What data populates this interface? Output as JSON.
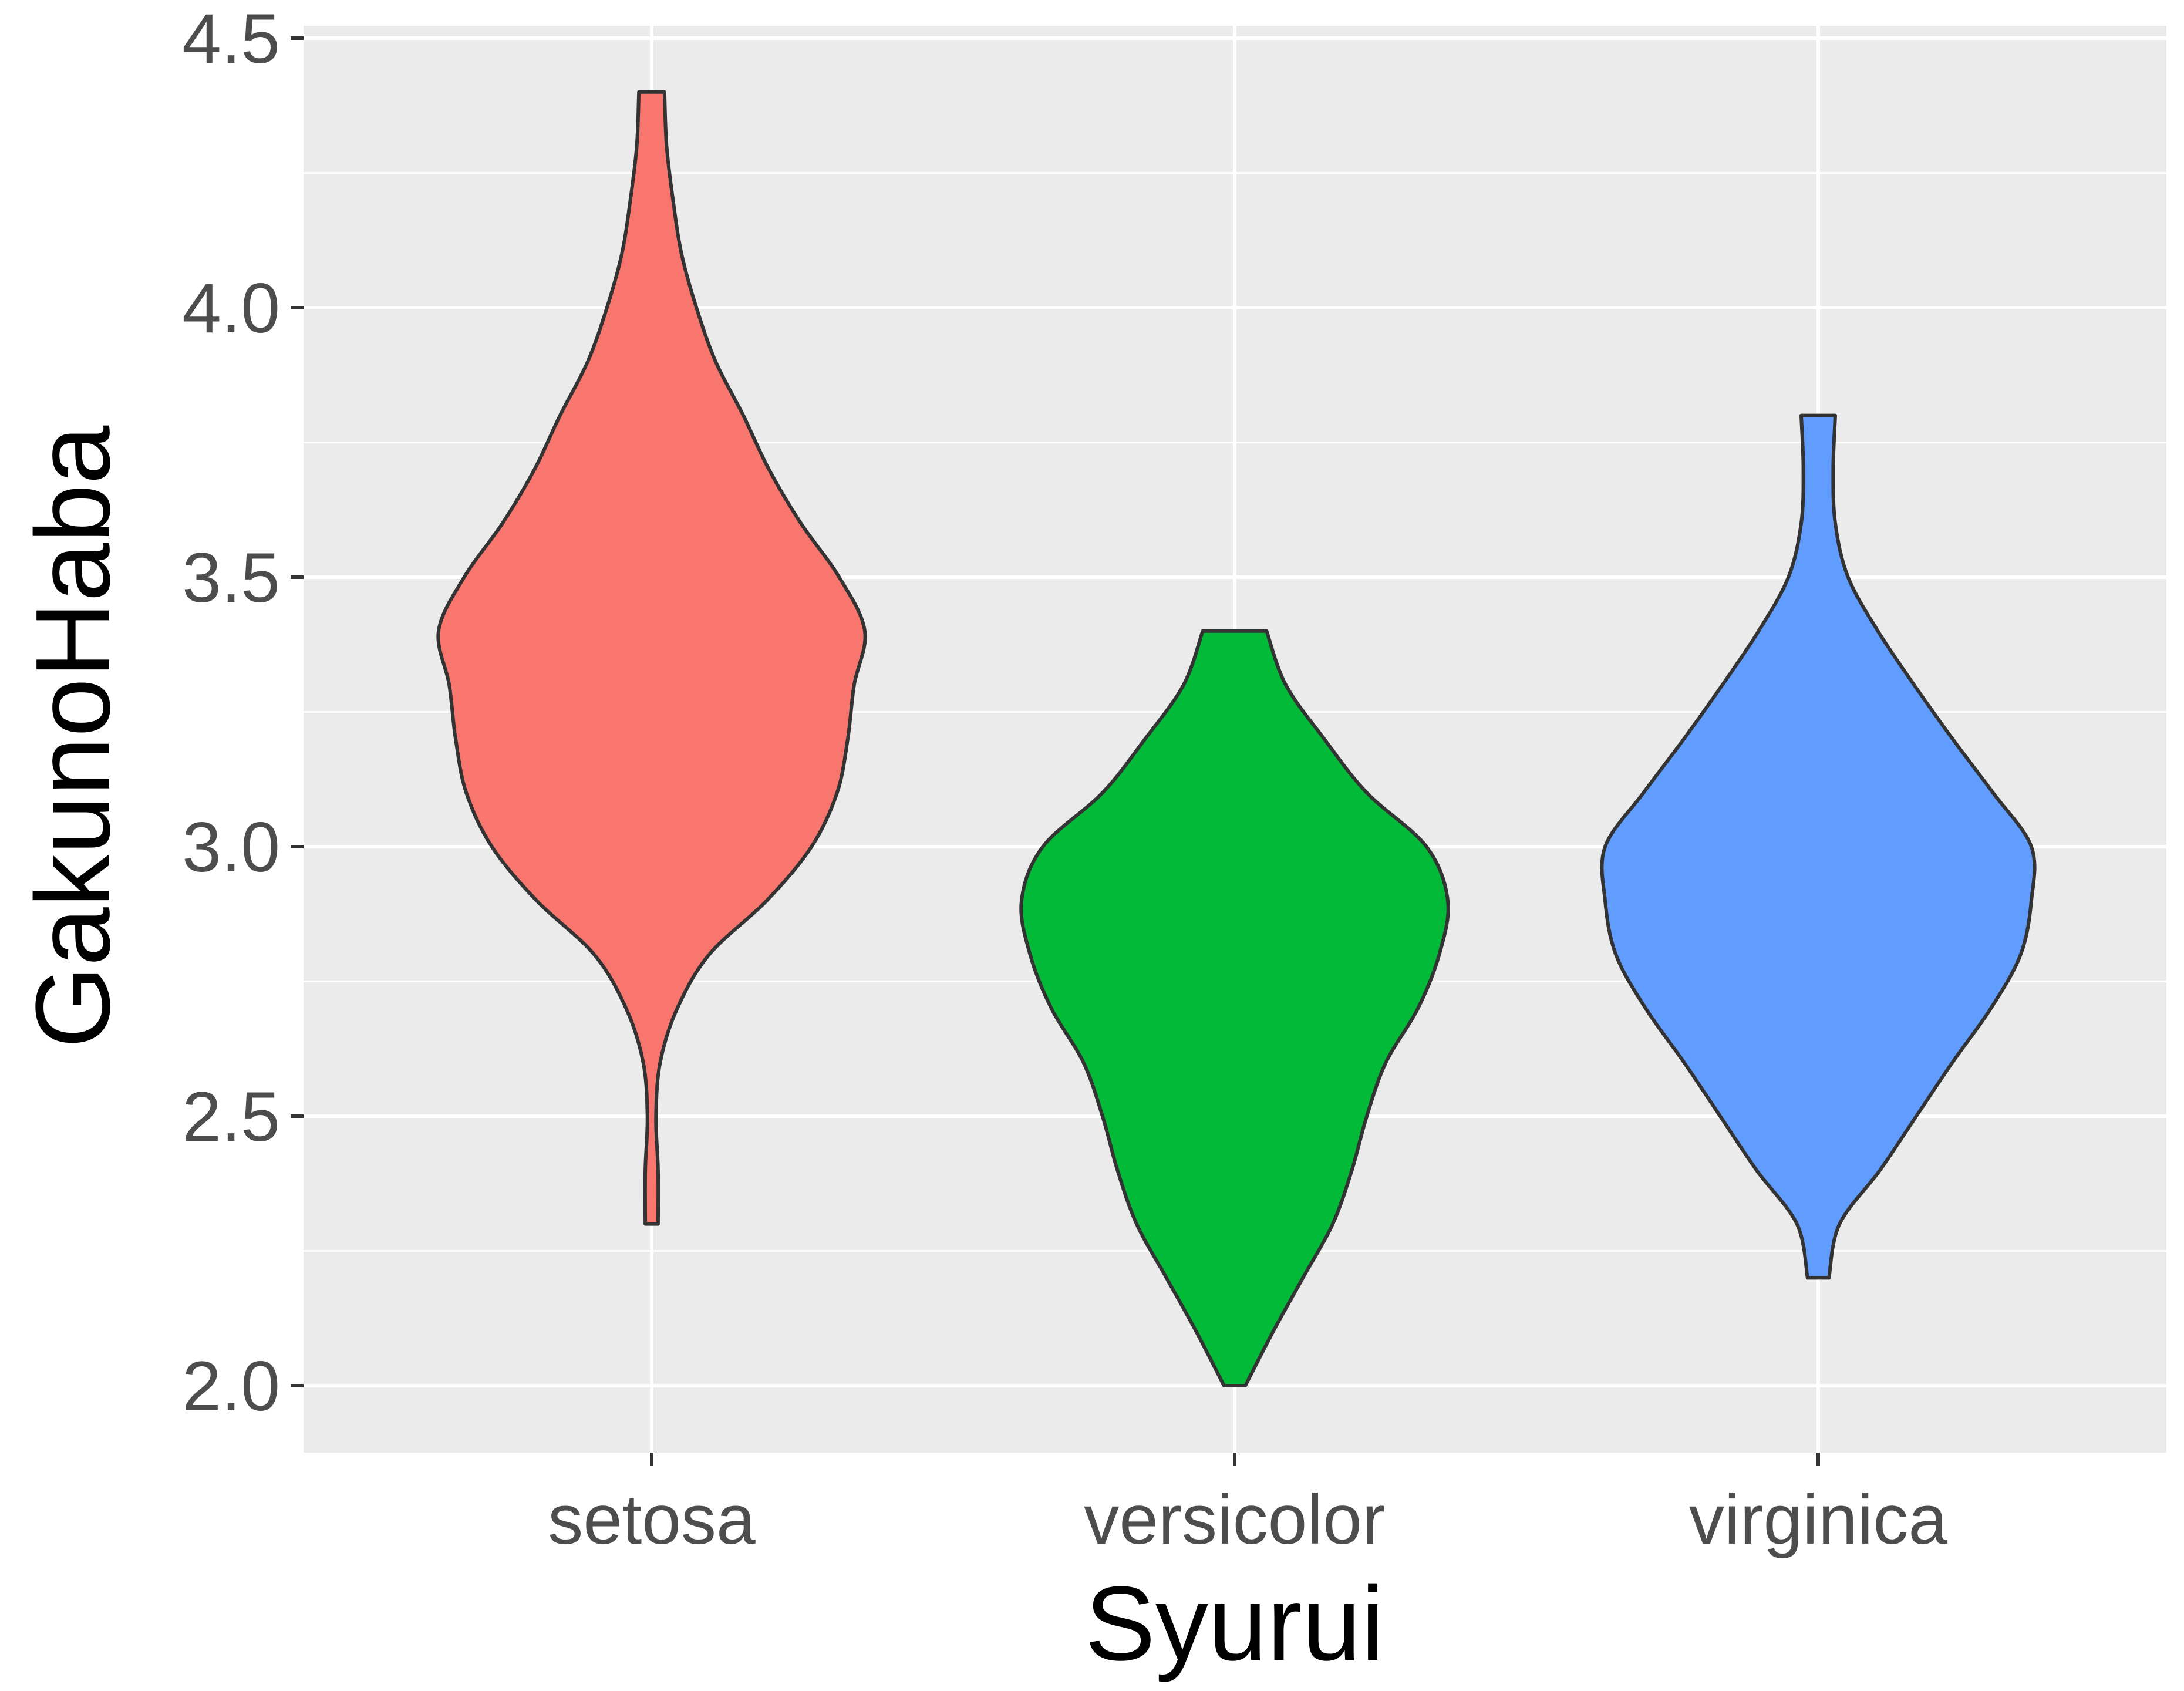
{
  "chart_data": {
    "type": "violin",
    "xlabel": "Syurui",
    "ylabel": "GakunoHaba",
    "ylim": [
      1.88,
      4.55
    ],
    "yticks": [
      "2.0",
      "2.5",
      "3.0",
      "3.5",
      "4.0",
      "4.5"
    ],
    "ytick_values": [
      2.0,
      2.5,
      3.0,
      3.5,
      4.0,
      4.5
    ],
    "grid": true,
    "legend": "none",
    "categories": [
      "setosa",
      "versicolor",
      "virginica"
    ],
    "series": [
      {
        "category": "setosa",
        "color": "#F8766D",
        "min": 2.3,
        "max": 4.4,
        "profile": [
          [
            2.3,
            0.03
          ],
          [
            2.4,
            0.03
          ],
          [
            2.5,
            0.02
          ],
          [
            2.6,
            0.04
          ],
          [
            2.7,
            0.12
          ],
          [
            2.8,
            0.27
          ],
          [
            2.9,
            0.54
          ],
          [
            3.0,
            0.75
          ],
          [
            3.1,
            0.87
          ],
          [
            3.2,
            0.92
          ],
          [
            3.3,
            0.95
          ],
          [
            3.4,
            1.0
          ],
          [
            3.5,
            0.88
          ],
          [
            3.6,
            0.7
          ],
          [
            3.7,
            0.55
          ],
          [
            3.8,
            0.43
          ],
          [
            3.9,
            0.3
          ],
          [
            4.0,
            0.21
          ],
          [
            4.1,
            0.14
          ],
          [
            4.2,
            0.1
          ],
          [
            4.3,
            0.07
          ],
          [
            4.4,
            0.06
          ]
        ]
      },
      {
        "category": "versicolor",
        "color": "#00BA38",
        "min": 2.0,
        "max": 3.4,
        "profile": [
          [
            2.0,
            0.05
          ],
          [
            2.1,
            0.18
          ],
          [
            2.2,
            0.32
          ],
          [
            2.3,
            0.46
          ],
          [
            2.4,
            0.55
          ],
          [
            2.5,
            0.62
          ],
          [
            2.6,
            0.71
          ],
          [
            2.7,
            0.86
          ],
          [
            2.8,
            0.96
          ],
          [
            2.9,
            1.0
          ],
          [
            3.0,
            0.9
          ],
          [
            3.1,
            0.62
          ],
          [
            3.2,
            0.42
          ],
          [
            3.3,
            0.24
          ],
          [
            3.4,
            0.15
          ]
        ]
      },
      {
        "category": "virginica",
        "color": "#619CFF",
        "min": 2.2,
        "max": 3.8,
        "profile": [
          [
            2.2,
            0.05
          ],
          [
            2.3,
            0.1
          ],
          [
            2.4,
            0.29
          ],
          [
            2.5,
            0.46
          ],
          [
            2.6,
            0.63
          ],
          [
            2.7,
            0.81
          ],
          [
            2.8,
            0.95
          ],
          [
            2.9,
            1.0
          ],
          [
            3.0,
            1.0
          ],
          [
            3.1,
            0.82
          ],
          [
            3.2,
            0.63
          ],
          [
            3.3,
            0.45
          ],
          [
            3.4,
            0.28
          ],
          [
            3.5,
            0.14
          ],
          [
            3.6,
            0.08
          ],
          [
            3.7,
            0.07
          ],
          [
            3.8,
            0.08
          ]
        ]
      }
    ]
  }
}
